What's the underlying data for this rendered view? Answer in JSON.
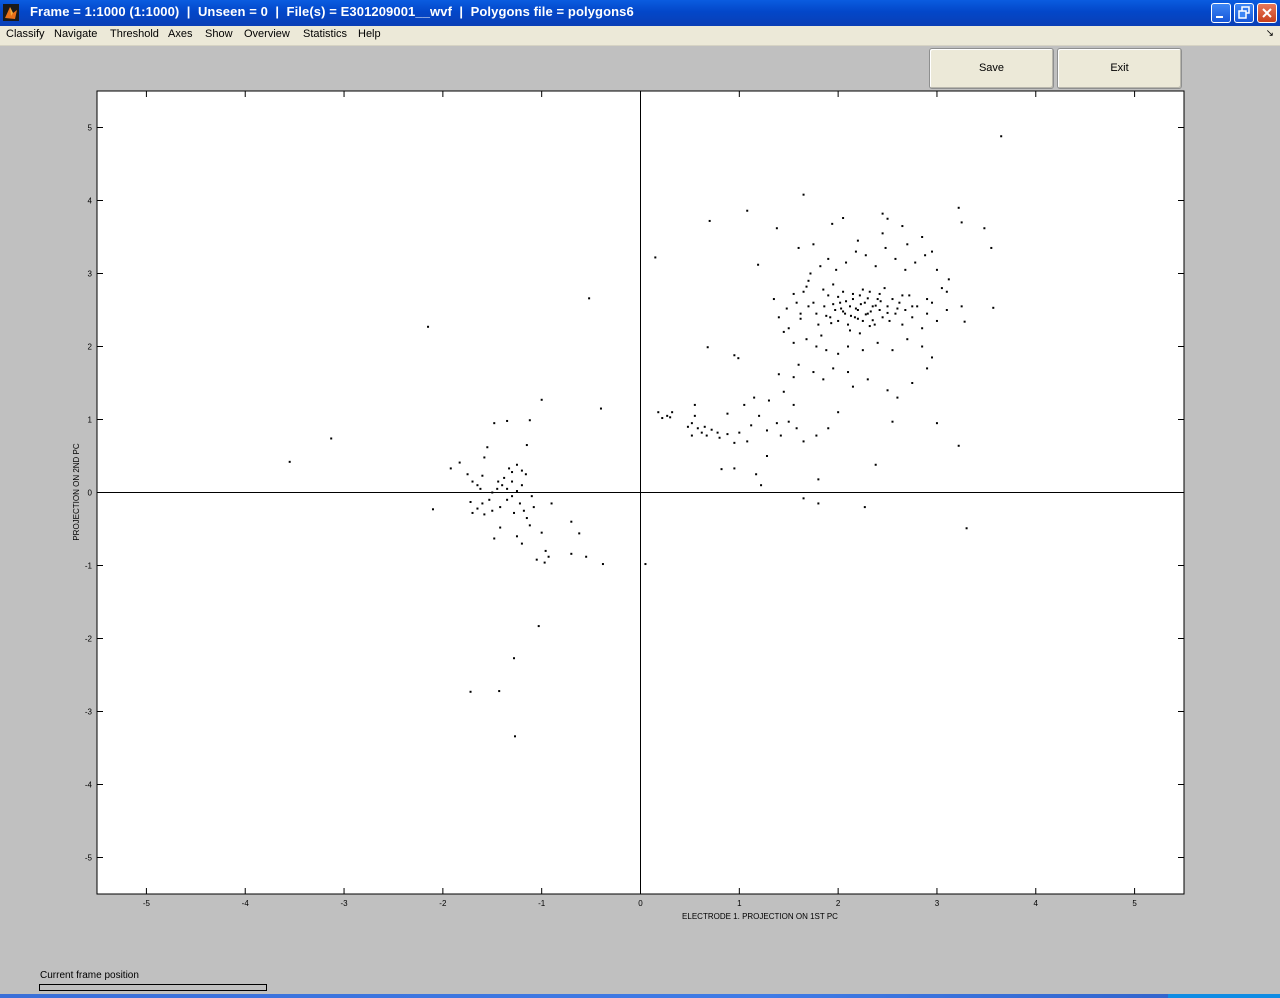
{
  "window": {
    "title": "Frame = 1:1000 (1:1000)  |  Unseen = 0  |  File(s) = E301209001__wvf  |  Polygons file = polygons6",
    "minimize_icon": "minimize-icon",
    "maximize_icon": "restore-icon",
    "close_icon": "close-icon",
    "accent": "#0347c9"
  },
  "menu": {
    "items": [
      "Classify",
      "Navigate",
      "Threshold",
      "Axes",
      "Show",
      "Overview",
      "Statistics",
      "Help"
    ],
    "corner_glyph": "↘"
  },
  "buttons": {
    "save": "Save",
    "exit": "Exit"
  },
  "chart_data": {
    "type": "scatter",
    "xlabel": "ELECTRODE 1. PROJECTION ON 1ST PC",
    "ylabel": "PROJECTION ON 2ND PC",
    "xlim": [
      -5.5,
      5.5
    ],
    "ylim": [
      -5.5,
      5.5
    ],
    "xticks": [
      -5,
      -4,
      -3,
      -2,
      -1,
      0,
      1,
      2,
      3,
      4,
      5
    ],
    "yticks": [
      5,
      4,
      3,
      2,
      1,
      0,
      -1,
      -2,
      -3,
      -4,
      -5
    ],
    "grid": false,
    "origin_lines": true,
    "marker_color": "#000000",
    "series": [
      {
        "points": [
          [
            -3.55,
            0.42
          ],
          [
            -3.13,
            0.74
          ],
          [
            -2.15,
            2.27
          ],
          [
            -0.52,
            2.66
          ],
          [
            -0.4,
            1.15
          ],
          [
            -1.0,
            1.27
          ],
          [
            -1.92,
            0.33
          ],
          [
            -1.83,
            0.41
          ],
          [
            -1.75,
            0.25
          ],
          [
            -1.7,
            0.15
          ],
          [
            -1.65,
            0.1
          ],
          [
            -1.6,
            0.23
          ],
          [
            -1.58,
            0.48
          ],
          [
            -1.55,
            0.62
          ],
          [
            -1.48,
            0.95
          ],
          [
            -1.35,
            0.98
          ],
          [
            -1.15,
            0.65
          ],
          [
            -1.12,
            0.99
          ],
          [
            -1.25,
            0.38
          ],
          [
            -1.2,
            0.3
          ],
          [
            -1.3,
            0.28
          ],
          [
            -1.38,
            0.2
          ],
          [
            -1.4,
            0.1
          ],
          [
            -1.45,
            0.05
          ],
          [
            -1.5,
            0.0
          ],
          [
            -1.53,
            -0.1
          ],
          [
            -1.6,
            -0.15
          ],
          [
            -1.65,
            -0.22
          ],
          [
            -1.7,
            -0.28
          ],
          [
            -1.58,
            -0.3
          ],
          [
            -1.5,
            -0.25
          ],
          [
            -1.42,
            -0.2
          ],
          [
            -1.35,
            -0.1
          ],
          [
            -1.3,
            -0.05
          ],
          [
            -1.25,
            0.02
          ],
          [
            -1.2,
            0.1
          ],
          [
            -1.22,
            -0.15
          ],
          [
            -1.18,
            -0.25
          ],
          [
            -1.15,
            -0.35
          ],
          [
            -1.12,
            -0.45
          ],
          [
            -1.1,
            -0.05
          ],
          [
            -1.08,
            -0.2
          ],
          [
            -1.3,
            0.15
          ],
          [
            -1.35,
            0.05
          ],
          [
            -1.28,
            -0.28
          ],
          [
            -1.42,
            -0.48
          ],
          [
            -1.48,
            -0.63
          ],
          [
            -1.25,
            -0.6
          ],
          [
            -1.2,
            -0.7
          ],
          [
            -1.05,
            -0.92
          ],
          [
            -1.0,
            -0.55
          ],
          [
            -0.96,
            -0.8
          ],
          [
            -0.93,
            -0.88
          ],
          [
            -0.97,
            -0.96
          ],
          [
            -0.9,
            -0.15
          ],
          [
            -0.7,
            -0.4
          ],
          [
            -0.62,
            -0.56
          ],
          [
            -0.55,
            -0.88
          ],
          [
            -0.38,
            -0.98
          ],
          [
            -0.7,
            -0.84
          ],
          [
            -2.1,
            -0.23
          ],
          [
            -1.72,
            -0.13
          ],
          [
            -1.62,
            0.05
          ],
          [
            -1.44,
            0.15
          ],
          [
            -1.33,
            0.33
          ],
          [
            -1.16,
            0.25
          ],
          [
            -1.03,
            -1.83
          ],
          [
            -1.28,
            -2.27
          ],
          [
            -1.72,
            -2.73
          ],
          [
            -1.43,
            -2.72
          ],
          [
            -1.27,
            -3.34
          ],
          [
            0.05,
            -0.98
          ],
          [
            0.15,
            3.22
          ],
          [
            0.18,
            1.1
          ],
          [
            0.22,
            1.02
          ],
          [
            0.27,
            1.05
          ],
          [
            0.32,
            1.1
          ],
          [
            0.3,
            1.03
          ],
          [
            0.52,
            0.95
          ],
          [
            0.55,
            1.05
          ],
          [
            0.55,
            1.2
          ],
          [
            0.58,
            0.88
          ],
          [
            0.62,
            0.82
          ],
          [
            0.65,
            0.9
          ],
          [
            0.67,
            0.78
          ],
          [
            0.72,
            0.86
          ],
          [
            0.78,
            0.82
          ],
          [
            0.8,
            0.75
          ],
          [
            0.88,
            0.8
          ],
          [
            0.95,
            0.68
          ],
          [
            1.0,
            0.82
          ],
          [
            1.08,
            0.7
          ],
          [
            0.82,
            0.32
          ],
          [
            0.95,
            0.33
          ],
          [
            1.17,
            0.25
          ],
          [
            1.22,
            0.1
          ],
          [
            1.28,
            0.5
          ],
          [
            0.52,
            0.78
          ],
          [
            0.48,
            0.9
          ],
          [
            0.7,
            3.72
          ],
          [
            0.68,
            1.99
          ],
          [
            0.99,
            1.84
          ],
          [
            0.95,
            1.88
          ],
          [
            1.08,
            3.86
          ],
          [
            1.19,
            3.12
          ],
          [
            1.38,
            3.62
          ],
          [
            1.65,
            4.08
          ],
          [
            1.94,
            3.68
          ],
          [
            2.05,
            3.76
          ],
          [
            2.45,
            3.82
          ],
          [
            2.5,
            3.75
          ],
          [
            2.65,
            3.65
          ],
          [
            2.85,
            3.5
          ],
          [
            3.22,
            3.9
          ],
          [
            3.25,
            3.7
          ],
          [
            3.48,
            3.62
          ],
          [
            3.55,
            3.35
          ],
          [
            3.65,
            4.88
          ],
          [
            3.57,
            2.53
          ],
          [
            3.28,
            2.34
          ],
          [
            3.22,
            0.64
          ],
          [
            3.0,
            0.95
          ],
          [
            2.38,
            0.38
          ],
          [
            1.8,
            0.18
          ],
          [
            1.65,
            -0.08
          ],
          [
            1.8,
            -0.15
          ],
          [
            2.27,
            -0.2
          ],
          [
            3.3,
            -0.49
          ],
          [
            1.5,
            0.97
          ],
          [
            1.55,
            1.2
          ],
          [
            1.45,
            1.38
          ],
          [
            1.3,
            1.26
          ],
          [
            1.2,
            1.05
          ],
          [
            1.15,
            1.3
          ],
          [
            1.4,
            1.62
          ],
          [
            1.55,
            1.58
          ],
          [
            1.6,
            1.75
          ],
          [
            1.75,
            1.65
          ],
          [
            1.85,
            1.55
          ],
          [
            1.95,
            1.7
          ],
          [
            2.1,
            1.65
          ],
          [
            2.15,
            1.45
          ],
          [
            2.3,
            1.55
          ],
          [
            2.5,
            1.4
          ],
          [
            2.6,
            1.3
          ],
          [
            2.75,
            1.5
          ],
          [
            2.9,
            1.7
          ],
          [
            2.55,
            0.97
          ],
          [
            1.42,
            0.78
          ],
          [
            1.65,
            0.7
          ],
          [
            1.78,
            0.78
          ],
          [
            1.9,
            0.88
          ],
          [
            2.0,
            1.1
          ],
          [
            1.35,
            2.65
          ],
          [
            1.4,
            2.4
          ],
          [
            1.48,
            2.52
          ],
          [
            1.45,
            2.2
          ],
          [
            1.55,
            2.05
          ],
          [
            1.62,
            2.45
          ],
          [
            1.65,
            2.75
          ],
          [
            1.7,
            2.9
          ],
          [
            1.75,
            2.6
          ],
          [
            1.78,
            2.45
          ],
          [
            1.8,
            2.3
          ],
          [
            1.83,
            2.15
          ],
          [
            1.86,
            2.55
          ],
          [
            1.9,
            2.7
          ],
          [
            1.92,
            2.4
          ],
          [
            1.95,
            2.85
          ],
          [
            1.97,
            2.5
          ],
          [
            2.0,
            2.35
          ],
          [
            2.02,
            2.6
          ],
          [
            2.05,
            2.75
          ],
          [
            2.07,
            2.45
          ],
          [
            2.1,
            2.3
          ],
          [
            2.12,
            2.55
          ],
          [
            2.15,
            2.65
          ],
          [
            2.17,
            2.4
          ],
          [
            2.2,
            2.5
          ],
          [
            2.22,
            2.7
          ],
          [
            2.25,
            2.35
          ],
          [
            2.27,
            2.6
          ],
          [
            2.3,
            2.45
          ],
          [
            2.32,
            2.75
          ],
          [
            2.35,
            2.55
          ],
          [
            2.37,
            2.3
          ],
          [
            2.4,
            2.65
          ],
          [
            2.42,
            2.5
          ],
          [
            2.45,
            2.4
          ],
          [
            2.47,
            2.8
          ],
          [
            2.5,
            2.55
          ],
          [
            2.52,
            2.35
          ],
          [
            2.55,
            2.65
          ],
          [
            2.58,
            2.45
          ],
          [
            2.62,
            2.6
          ],
          [
            2.65,
            2.3
          ],
          [
            2.68,
            2.5
          ],
          [
            2.72,
            2.7
          ],
          [
            2.75,
            2.4
          ],
          [
            2.8,
            2.55
          ],
          [
            2.85,
            2.25
          ],
          [
            2.9,
            2.45
          ],
          [
            2.95,
            2.6
          ],
          [
            3.0,
            2.35
          ],
          [
            3.05,
            2.8
          ],
          [
            3.1,
            2.5
          ],
          [
            1.72,
            3.0
          ],
          [
            1.82,
            3.1
          ],
          [
            1.9,
            3.2
          ],
          [
            1.98,
            3.05
          ],
          [
            2.08,
            3.15
          ],
          [
            2.18,
            3.3
          ],
          [
            2.28,
            3.25
          ],
          [
            2.38,
            3.1
          ],
          [
            2.48,
            3.35
          ],
          [
            2.58,
            3.2
          ],
          [
            2.68,
            3.05
          ],
          [
            2.78,
            3.15
          ],
          [
            2.88,
            3.25
          ],
          [
            1.6,
            3.35
          ],
          [
            1.75,
            3.4
          ],
          [
            2.2,
            3.45
          ],
          [
            2.45,
            3.55
          ],
          [
            2.7,
            3.4
          ],
          [
            2.95,
            3.3
          ],
          [
            3.0,
            3.05
          ],
          [
            1.68,
            2.1
          ],
          [
            1.78,
            2.0
          ],
          [
            1.88,
            1.95
          ],
          [
            2.0,
            1.9
          ],
          [
            2.1,
            2.0
          ],
          [
            2.25,
            1.95
          ],
          [
            2.4,
            2.05
          ],
          [
            2.55,
            1.95
          ],
          [
            2.7,
            2.1
          ],
          [
            2.85,
            2.0
          ],
          [
            2.95,
            1.85
          ],
          [
            1.5,
            2.25
          ],
          [
            1.58,
            2.6
          ],
          [
            1.68,
            2.82
          ],
          [
            2.03,
            2.52
          ],
          [
            2.13,
            2.42
          ],
          [
            2.23,
            2.58
          ],
          [
            2.33,
            2.48
          ],
          [
            2.43,
            2.62
          ],
          [
            2.05,
            2.48
          ],
          [
            2.18,
            2.52
          ],
          [
            2.28,
            2.44
          ],
          [
            2.38,
            2.56
          ],
          [
            2.08,
            2.62
          ],
          [
            2.2,
            2.38
          ],
          [
            2.3,
            2.66
          ],
          [
            1.95,
            2.58
          ],
          [
            2.15,
            2.72
          ],
          [
            2.35,
            2.36
          ],
          [
            2.25,
            2.78
          ],
          [
            1.88,
            2.42
          ],
          [
            1.93,
            2.32
          ],
          [
            2.0,
            2.68
          ],
          [
            2.42,
            2.72
          ],
          [
            2.5,
            2.46
          ],
          [
            2.6,
            2.52
          ],
          [
            2.12,
            2.22
          ],
          [
            2.22,
            2.18
          ],
          [
            2.32,
            2.28
          ],
          [
            1.85,
            2.78
          ],
          [
            2.65,
            2.7
          ],
          [
            2.75,
            2.55
          ],
          [
            1.7,
            2.55
          ],
          [
            1.62,
            2.38
          ],
          [
            1.55,
            2.72
          ],
          [
            2.9,
            2.65
          ],
          [
            3.1,
            2.75
          ],
          [
            3.12,
            2.92
          ],
          [
            3.25,
            2.55
          ],
          [
            0.88,
            1.08
          ],
          [
            1.05,
            1.2
          ],
          [
            1.12,
            0.92
          ],
          [
            1.28,
            0.85
          ],
          [
            1.38,
            0.95
          ],
          [
            1.58,
            0.88
          ]
        ]
      }
    ]
  },
  "status": {
    "frame_label": "Current frame position",
    "frame_progress": 0
  }
}
